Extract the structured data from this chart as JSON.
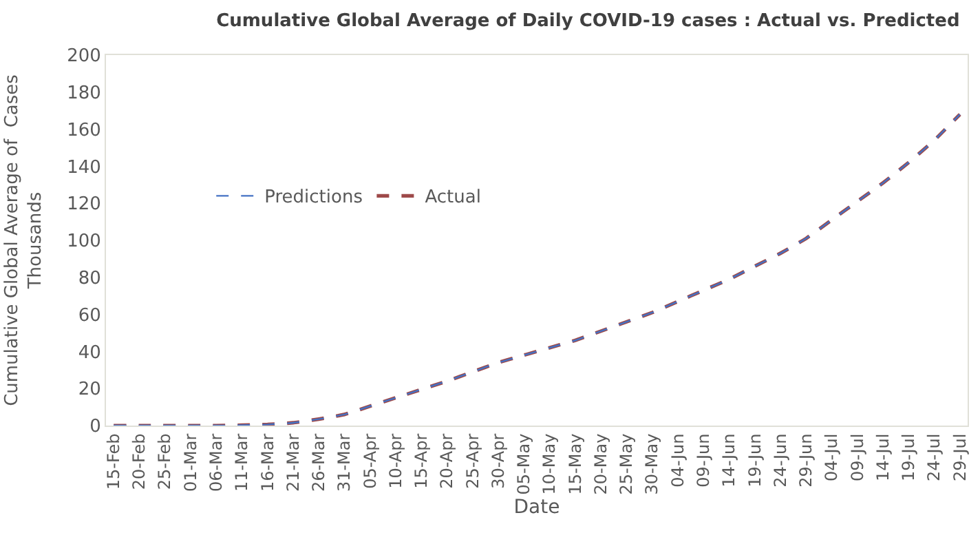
{
  "chart_data": {
    "type": "line",
    "title": "Cumulative Global Average of Daily COVID-19 cases : Actual vs. Predicted",
    "xlabel": "Date",
    "ylabel": "Cumulative Global Average of  Cases\nThousands",
    "categories": [
      "15-Feb",
      "20-Feb",
      "25-Feb",
      "01-Mar",
      "06-Mar",
      "11-Mar",
      "16-Mar",
      "21-Mar",
      "26-Mar",
      "31-Mar",
      "05-Apr",
      "10-Apr",
      "15-Apr",
      "20-Apr",
      "25-Apr",
      "30-Apr",
      "05-May",
      "10-May",
      "15-May",
      "20-May",
      "25-May",
      "30-May",
      "04-Jun",
      "09-Jun",
      "14-Jun",
      "19-Jun",
      "24-Jun",
      "29-Jun",
      "04-Jul",
      "09-Jul",
      "14-Jul",
      "19-Jul",
      "24-Jul",
      "29-Jul"
    ],
    "series": [
      {
        "name": "Predictions",
        "color": "#4472c4",
        "values": [
          0,
          0,
          0,
          0,
          0,
          0.2,
          0.6,
          1.5,
          3.5,
          6,
          10.5,
          15,
          19.5,
          24,
          29,
          34,
          38,
          42,
          46,
          51,
          56,
          61,
          67,
          73,
          79,
          86,
          93,
          101,
          111,
          121,
          131,
          142,
          154,
          168
        ]
      },
      {
        "name": "Actual",
        "color": "#9e4a4a",
        "values": [
          0,
          0,
          0,
          0,
          0,
          0.2,
          0.6,
          1.5,
          3.5,
          6,
          10.5,
          15,
          19.5,
          24,
          29,
          34,
          38,
          42,
          46,
          51,
          56,
          61,
          67,
          73,
          79,
          86,
          93,
          101,
          111,
          121,
          131,
          142,
          154,
          168
        ]
      }
    ],
    "ylim": [
      0,
      200
    ],
    "yticks": [
      0,
      20,
      40,
      60,
      80,
      100,
      120,
      140,
      160,
      180,
      200
    ],
    "grid": false,
    "legend": "top left",
    "marker": "none",
    "line_style": "dashed"
  }
}
